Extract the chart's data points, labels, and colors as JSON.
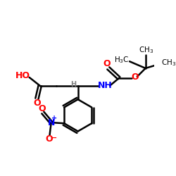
{
  "bg_color": "#ffffff",
  "bond_color": "#000000",
  "red_color": "#ff0000",
  "blue_color": "#0000ff",
  "gray_color": "#808080",
  "figsize": [
    2.5,
    2.5
  ],
  "dpi": 100,
  "xlim": [
    0,
    10
  ],
  "ylim": [
    0,
    10
  ]
}
